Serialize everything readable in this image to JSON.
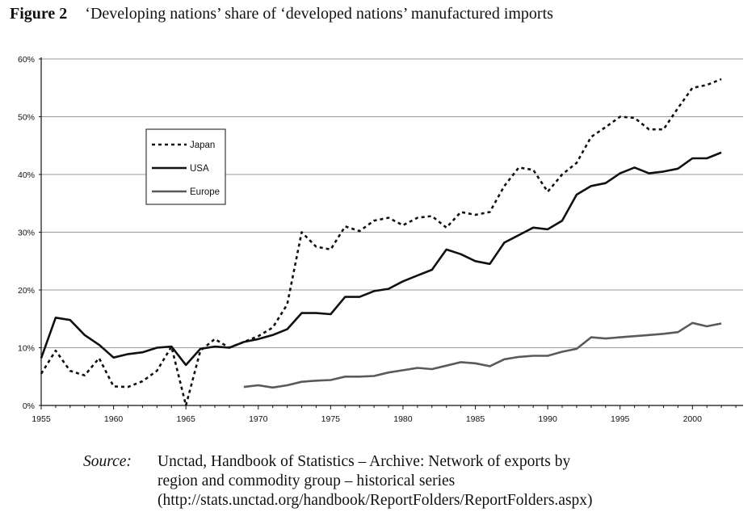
{
  "figure": {
    "number": "Figure 2",
    "title": "‘Developing nations’ share of ‘developed nations’ manufactured imports"
  },
  "source": {
    "label": "Source:",
    "lines": [
      "Unctad, Handbook of Statistics – Archive: Network of exports by",
      "region and commodity group – historical series",
      "(http://stats.unctad.org/handbook/ReportFolders/ReportFolders.aspx)"
    ]
  },
  "chart_data": {
    "type": "line",
    "title": "",
    "xlabel": "",
    "ylabel": "",
    "xlim": [
      1955,
      2003
    ],
    "ylim": [
      0,
      60
    ],
    "grid": "horizontal",
    "legend_position": "top-left",
    "x_ticks": [
      "1955",
      "1960",
      "1965",
      "1970",
      "1975",
      "1980",
      "1985",
      "1990",
      "1995",
      "2000"
    ],
    "y_ticks": [
      "0%",
      "10%",
      "20%",
      "30%",
      "40%",
      "50%",
      "60%"
    ],
    "series": [
      {
        "name": "Japan",
        "style": "dashed",
        "color": "#111111",
        "x": [
          1955,
          1956,
          1957,
          1958,
          1959,
          1960,
          1961,
          1962,
          1963,
          1964,
          1965,
          1966,
          1967,
          1968,
          1969,
          1970,
          1971,
          1972,
          1973,
          1974,
          1975,
          1976,
          1977,
          1978,
          1979,
          1980,
          1981,
          1982,
          1983,
          1984,
          1985,
          1986,
          1987,
          1988,
          1989,
          1990,
          1991,
          1992,
          1993,
          1994,
          1995,
          1996,
          1997,
          1998,
          1999,
          2000,
          2001,
          2002
        ],
        "y": [
          5.5,
          9.5,
          6,
          5.2,
          8.2,
          3.3,
          3.2,
          4.2,
          6,
          10.2,
          0,
          9.5,
          11.5,
          10,
          11,
          12,
          13.5,
          17.5,
          30,
          27.5,
          27,
          31,
          30.2,
          32,
          32.5,
          31.2,
          32.5,
          32.8,
          30.8,
          33.5,
          33,
          33.5,
          38,
          41.2,
          40.8,
          37,
          40,
          42,
          46.5,
          48.2,
          50,
          49.8,
          47.8,
          47.8,
          51.5,
          55,
          55.5,
          56.5
        ]
      },
      {
        "name": "USA",
        "style": "solid",
        "color": "#111111",
        "x": [
          1955,
          1956,
          1957,
          1958,
          1959,
          1960,
          1961,
          1962,
          1963,
          1964,
          1965,
          1966,
          1967,
          1968,
          1969,
          1970,
          1971,
          1972,
          1973,
          1974,
          1975,
          1976,
          1977,
          1978,
          1979,
          1980,
          1981,
          1982,
          1983,
          1984,
          1985,
          1986,
          1987,
          1988,
          1989,
          1990,
          1991,
          1992,
          1993,
          1994,
          1995,
          1996,
          1997,
          1998,
          1999,
          2000,
          2001,
          2002
        ],
        "y": [
          8.2,
          15.2,
          14.8,
          12.2,
          10.5,
          8.3,
          8.9,
          9.2,
          10,
          10.2,
          7,
          9.8,
          10.2,
          10,
          11,
          11.5,
          12.2,
          13.2,
          16,
          16,
          15.8,
          18.8,
          18.8,
          19.8,
          20.2,
          21.5,
          22.5,
          23.5,
          27,
          26.2,
          25,
          24.5,
          28.2,
          29.5,
          30.8,
          30.5,
          32,
          36.5,
          38,
          38.5,
          40.2,
          41.2,
          40.2,
          40.5,
          41,
          42.8,
          42.8,
          43.8
        ]
      },
      {
        "name": "Europe",
        "style": "solid",
        "color": "#5a5a5a",
        "x": [
          1969,
          1970,
          1971,
          1972,
          1973,
          1974,
          1975,
          1976,
          1977,
          1978,
          1979,
          1980,
          1981,
          1982,
          1983,
          1984,
          1985,
          1986,
          1987,
          1988,
          1989,
          1990,
          1991,
          1992,
          1993,
          1994,
          1995,
          1996,
          1997,
          1998,
          1999,
          2000,
          2001,
          2002
        ],
        "y": [
          3.2,
          3.5,
          3.1,
          3.5,
          4.1,
          4.3,
          4.4,
          5,
          5,
          5.1,
          5.7,
          6.1,
          6.5,
          6.3,
          6.9,
          7.5,
          7.3,
          6.8,
          8,
          8.4,
          8.6,
          8.6,
          9.3,
          9.8,
          11.8,
          11.6,
          11.8,
          12,
          12.2,
          12.4,
          12.7,
          14.3,
          13.7,
          14.2
        ]
      }
    ]
  }
}
